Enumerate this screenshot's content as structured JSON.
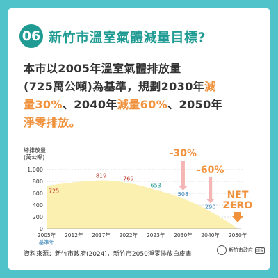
{
  "header": {
    "number": "06",
    "title": "新竹市溫室氣體減量目標?"
  },
  "body": {
    "line1": "本市以2005年溫室氣體排放量",
    "line2a": "(725萬公噸)為基準，規劃2030年",
    "line2b": "減",
    "line3a": "量30%",
    "line3b": "、2040年",
    "line3c": "減量60%",
    "line3d": "、2050年",
    "line4": "淨零排放。"
  },
  "chart_data": {
    "type": "area",
    "ylabel": "總排放量\n(萬公噸)",
    "ylim": [
      0,
      1000
    ],
    "yticks": [
      0,
      200,
      400,
      600,
      800,
      1000
    ],
    "x_categories": [
      "2005年",
      "2012年",
      "2017年",
      "2022年",
      "2023年",
      "2030年",
      "2040年",
      "2050年"
    ],
    "baseline_caption": "基準年",
    "points": [
      {
        "x": "2005年",
        "value": 725,
        "label": "725",
        "color": "#c0392b"
      },
      {
        "x": "2017年",
        "value": 819,
        "label": "819",
        "color": "#c0392b"
      },
      {
        "x": "2022年",
        "value": 769,
        "label": "769",
        "color": "#c0392b"
      },
      {
        "x": "2023年",
        "value": 653,
        "label": "653",
        "color": "#1f9b93"
      },
      {
        "x": "2030年",
        "value": 508,
        "label": "508",
        "color": "#2b7cb5"
      },
      {
        "x": "2040年",
        "value": 290,
        "label": "290",
        "color": "#2b7cb5"
      }
    ],
    "annotations": [
      {
        "x": "2030年",
        "text": "-30%",
        "color": "#f0913c"
      },
      {
        "x": "2040年",
        "text": "-60%",
        "color": "#f0913c"
      },
      {
        "x": "2050年",
        "text": "NET\nZERO",
        "color": "#f0913c"
      }
    ],
    "fill_color": "#fbf0b0",
    "arrow_color": "#f4b6b4"
  },
  "source": "資料來源：新竹市政府(2024)，新竹市2050淨零排放白皮書",
  "logo": {
    "text": "新竹市政府",
    "box": "環保"
  }
}
